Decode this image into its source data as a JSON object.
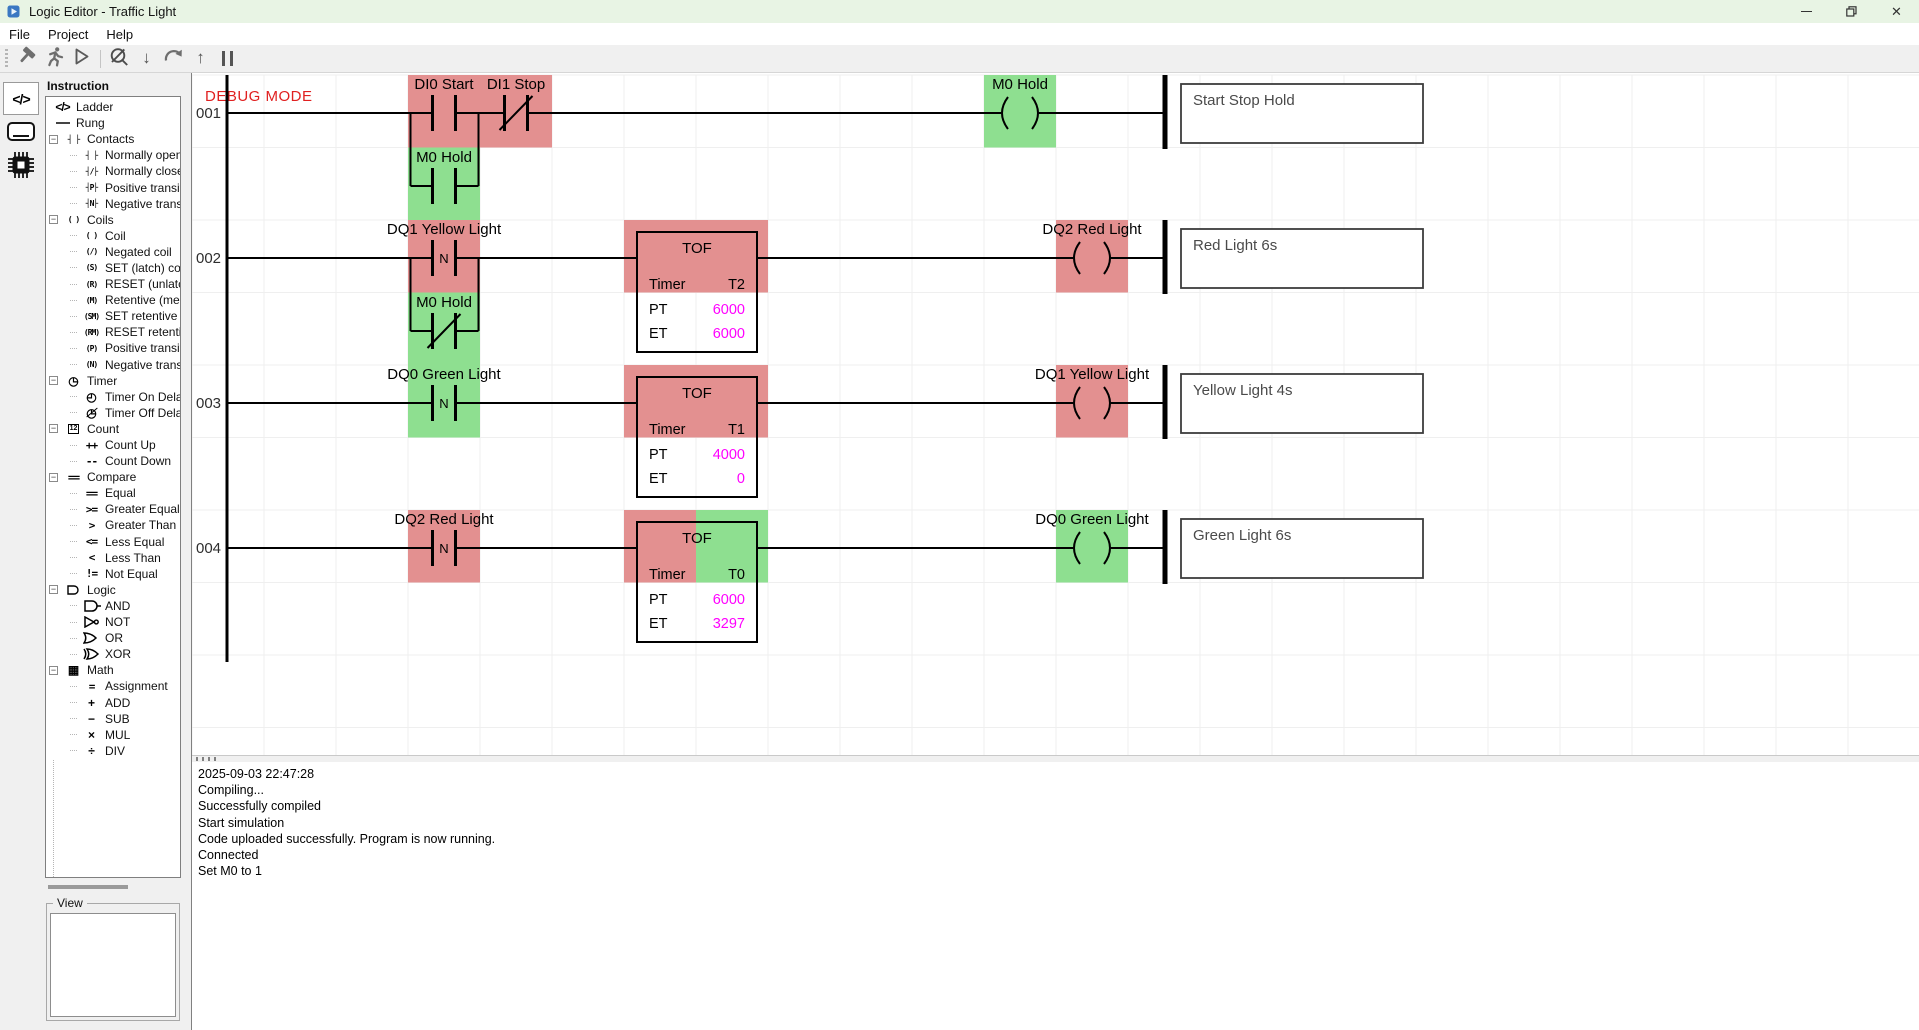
{
  "window": {
    "title": "Logic Editor - Traffic Light",
    "buttons": [
      "minimize",
      "restore",
      "close"
    ]
  },
  "menu": {
    "items": [
      "File",
      "Project",
      "Help"
    ]
  },
  "toolbar": {
    "icons": [
      "hammer",
      "runner",
      "play",
      "sep",
      "disconnect",
      "download",
      "sync",
      "upload",
      "pause"
    ]
  },
  "left_strip": {
    "icons": [
      {
        "name": "code",
        "selected": true
      },
      {
        "name": "terminal",
        "selected": false
      },
      {
        "name": "chip",
        "selected": false
      }
    ]
  },
  "sidebar": {
    "header": "Instruction",
    "view_label": "View",
    "tree": [
      {
        "icon": "ladder",
        "label": "Ladder",
        "depth": 0,
        "expand": null
      },
      {
        "icon": "rung",
        "label": "Rung",
        "depth": 0,
        "expand": null
      },
      {
        "icon": "contacts",
        "label": "Contacts",
        "depth": 0,
        "expand": "minus"
      },
      {
        "icon": "contact-no",
        "label": "Normally open",
        "depth": 1
      },
      {
        "icon": "contact-nc",
        "label": "Normally closed",
        "depth": 1
      },
      {
        "icon": "contact-p",
        "label": "Positive transition",
        "depth": 1
      },
      {
        "icon": "contact-n",
        "label": "Negative transition",
        "depth": 1
      },
      {
        "icon": "coils",
        "label": "Coils",
        "depth": 0,
        "expand": "minus"
      },
      {
        "icon": "coil",
        "label": "Coil",
        "depth": 1
      },
      {
        "icon": "coil-neg",
        "label": "Negated coil",
        "depth": 1
      },
      {
        "icon": "coil-set",
        "label": "SET (latch) coil",
        "depth": 1
      },
      {
        "icon": "coil-reset",
        "label": "RESET (unlatch) coil",
        "depth": 1
      },
      {
        "icon": "coil-m",
        "label": "Retentive (memory)",
        "depth": 1
      },
      {
        "icon": "coil-sm",
        "label": "SET retentive",
        "depth": 1
      },
      {
        "icon": "coil-rm",
        "label": "RESET retentive",
        "depth": 1
      },
      {
        "icon": "coil-p",
        "label": "Positive transition",
        "depth": 1
      },
      {
        "icon": "coil-n",
        "label": "Negative transition",
        "depth": 1
      },
      {
        "icon": "timer",
        "label": "Timer",
        "depth": 0,
        "expand": "minus"
      },
      {
        "icon": "timer-on",
        "label": "Timer On Delay",
        "depth": 1
      },
      {
        "icon": "timer-off",
        "label": "Timer Off Delay",
        "depth": 1
      },
      {
        "icon": "count",
        "label": "Count",
        "depth": 0,
        "expand": "minus"
      },
      {
        "icon": "count-up",
        "label": "Count Up",
        "depth": 1
      },
      {
        "icon": "count-down",
        "label": "Count Down",
        "depth": 1
      },
      {
        "icon": "compare",
        "label": "Compare",
        "depth": 0,
        "expand": "minus"
      },
      {
        "icon": "eq",
        "label": "Equal",
        "depth": 1
      },
      {
        "icon": "ge",
        "label": "Greater Equal",
        "depth": 1
      },
      {
        "icon": "gt",
        "label": "Greater Than",
        "depth": 1
      },
      {
        "icon": "le",
        "label": "Less Equal",
        "depth": 1
      },
      {
        "icon": "lt",
        "label": "Less Than",
        "depth": 1
      },
      {
        "icon": "ne",
        "label": "Not Equal",
        "depth": 1
      },
      {
        "icon": "logic",
        "label": "Logic",
        "depth": 0,
        "expand": "minus"
      },
      {
        "icon": "and",
        "label": "AND",
        "depth": 1
      },
      {
        "icon": "not",
        "label": "NOT",
        "depth": 1
      },
      {
        "icon": "or",
        "label": "OR",
        "depth": 1
      },
      {
        "icon": "xor",
        "label": "XOR",
        "depth": 1
      },
      {
        "icon": "math",
        "label": "Math",
        "depth": 0,
        "expand": "minus"
      },
      {
        "icon": "assign",
        "label": "Assignment",
        "depth": 1
      },
      {
        "icon": "add",
        "label": "ADD",
        "depth": 1
      },
      {
        "icon": "sub",
        "label": "SUB",
        "depth": 1
      },
      {
        "icon": "mul",
        "label": "MUL",
        "depth": 1
      },
      {
        "icon": "div",
        "label": "DIV",
        "depth": 1
      }
    ]
  },
  "ladder": {
    "debug_label": "DEBUG MODE",
    "colors": {
      "red": "#e39090",
      "green": "#8edf90",
      "magenta": "#ff00ff",
      "debug": "#e02020",
      "wire": "#000000",
      "comment_text": "#4a4a4a",
      "grid": "#efefef"
    },
    "timer_labels": {
      "title": "TOF",
      "name": "Timer",
      "pt": "PT",
      "et": "ET"
    },
    "rungs": [
      {
        "number": "001",
        "contacts": [
          {
            "label": "DI0 Start",
            "type": "no",
            "highlight": "red"
          },
          {
            "label": "DI1 Stop",
            "type": "nc",
            "highlight": "red"
          }
        ],
        "branch": {
          "label": "M0 Hold",
          "type": "no",
          "highlight": "green"
        },
        "timer": null,
        "coil": {
          "label": "M0 Hold",
          "highlight": "green",
          "pos": "inner"
        },
        "comment": "Start Stop Hold"
      },
      {
        "number": "002",
        "contacts": [
          {
            "label": "DQ1 Yellow Light",
            "type": "n",
            "highlight": "red"
          }
        ],
        "branch": {
          "label": "M0 Hold",
          "type": "nc",
          "highlight": "green"
        },
        "timer": {
          "name": "T2",
          "pt": "6000",
          "et": "6000",
          "hl_left": "red",
          "hl_right": "red"
        },
        "coil": {
          "label": "DQ2 Red Light",
          "highlight": "red",
          "pos": "outer"
        },
        "comment": "Red Light 6s"
      },
      {
        "number": "003",
        "contacts": [
          {
            "label": "DQ0 Green Light",
            "type": "n",
            "highlight": "green"
          }
        ],
        "branch": null,
        "timer": {
          "name": "T1",
          "pt": "4000",
          "et": "0",
          "hl_left": "red",
          "hl_right": "red"
        },
        "coil": {
          "label": "DQ1 Yellow Light",
          "highlight": "red",
          "pos": "outer"
        },
        "comment": "Yellow Light 4s"
      },
      {
        "number": "004",
        "contacts": [
          {
            "label": "DQ2 Red Light",
            "type": "n",
            "highlight": "red"
          }
        ],
        "branch": null,
        "timer": {
          "name": "T0",
          "pt": "6000",
          "et": "3297",
          "hl_left": "red",
          "hl_right": "green"
        },
        "coil": {
          "label": "DQ0 Green Light",
          "highlight": "green",
          "pos": "outer"
        },
        "comment": "Green Light 6s"
      }
    ]
  },
  "log": {
    "lines": [
      "2025-09-03 22:47:28",
      "Compiling...",
      "Successfully compiled",
      "Start simulation",
      "Code uploaded successfully. Program is now running.",
      "Connected",
      "Set M0 to 1"
    ]
  }
}
